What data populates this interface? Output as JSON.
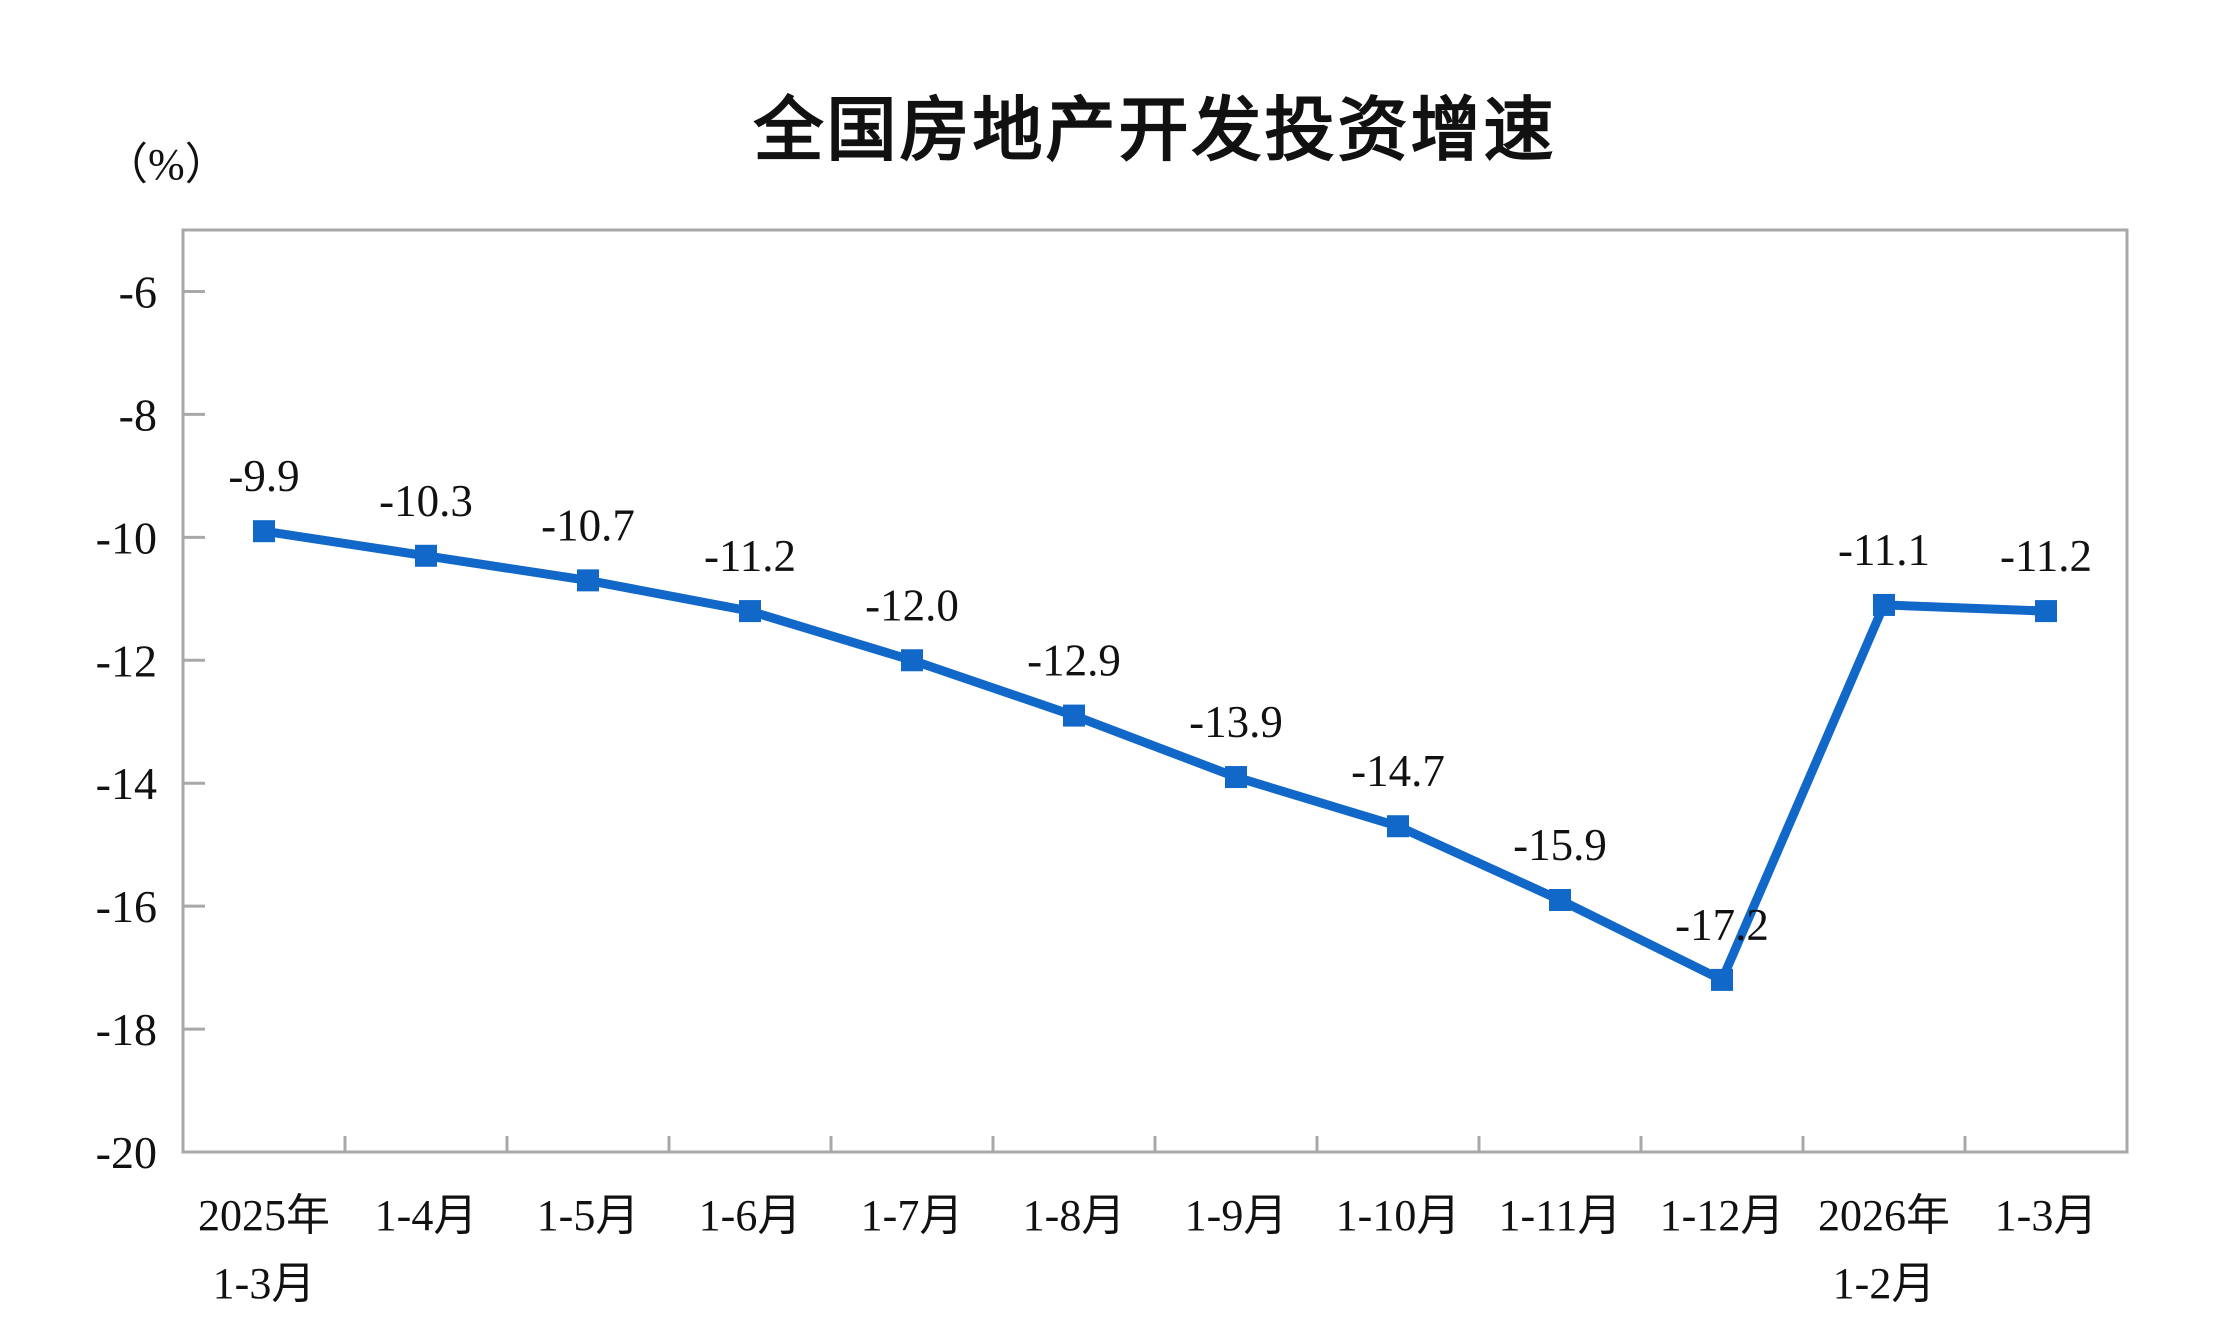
{
  "title": "全国房地产开发投资增速",
  "unit_label": "（%）",
  "colors": {
    "line": "#1168c8",
    "marker": "#1168c8",
    "axis": "#a8a8a8",
    "text": "#111111"
  },
  "chart_data": {
    "type": "line",
    "title": "全国房地产开发投资增速",
    "ylabel": "（%）",
    "xlabel": "",
    "categories": [
      [
        "2025年",
        "1-3月"
      ],
      [
        "1-4月"
      ],
      [
        "1-5月"
      ],
      [
        "1-6月"
      ],
      [
        "1-7月"
      ],
      [
        "1-8月"
      ],
      [
        "1-9月"
      ],
      [
        "1-10月"
      ],
      [
        "1-11月"
      ],
      [
        "1-12月"
      ],
      [
        "2026年",
        "1-2月"
      ],
      [
        "1-3月"
      ]
    ],
    "series": [
      {
        "name": "全国房地产开发投资增速",
        "values": [
          -9.9,
          -10.3,
          -10.7,
          -11.2,
          -12.0,
          -12.9,
          -13.9,
          -14.7,
          -15.9,
          -17.2,
          -11.1,
          -11.2
        ],
        "data_labels": [
          "-9.9",
          "-10.3",
          "-10.7",
          "-11.2",
          "-12.0",
          "-12.9",
          "-13.9",
          "-14.7",
          "-15.9",
          "-17.2",
          "-11.1",
          "-11.2"
        ]
      }
    ],
    "ylim": [
      -20,
      -5
    ],
    "yticks": [
      -6,
      -8,
      -10,
      -12,
      -14,
      -16,
      -18,
      -20
    ],
    "grid": false,
    "legend_position": "none",
    "marker_shape": "square",
    "data_label_position": "above"
  }
}
